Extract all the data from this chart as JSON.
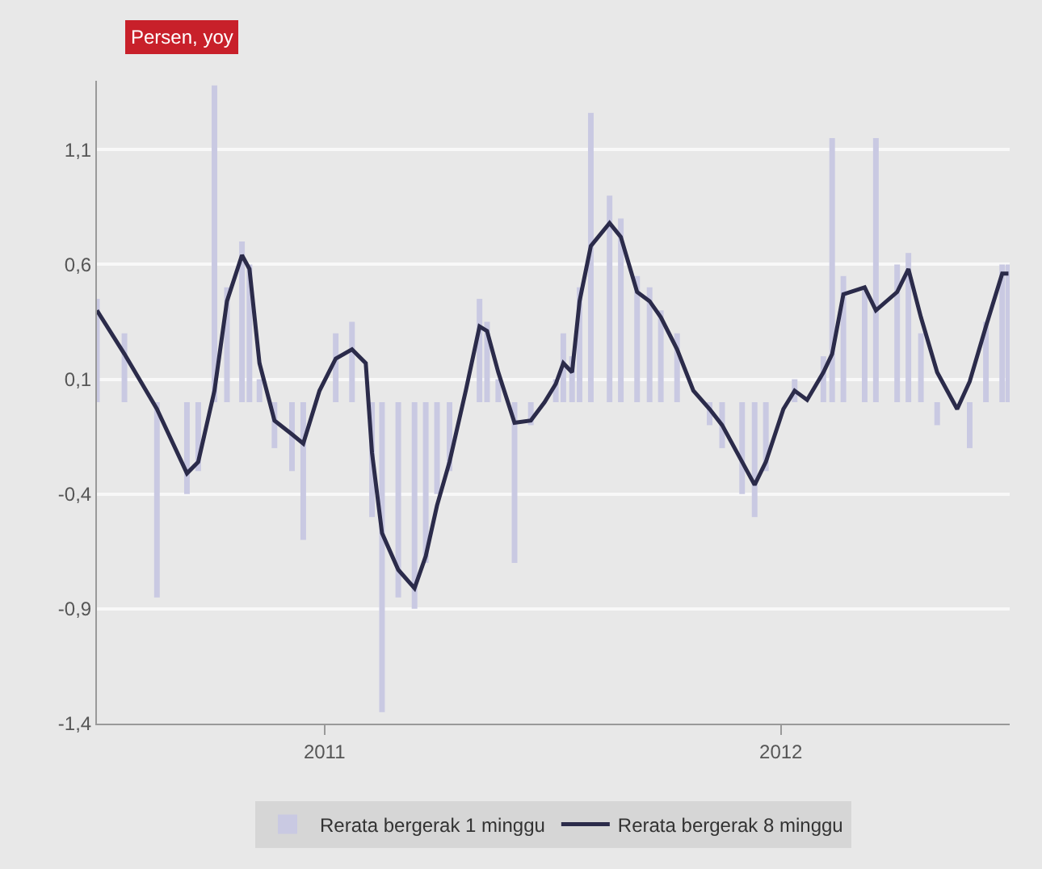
{
  "chart_data": {
    "type": "bar",
    "annotations": [
      "Persen, yoy"
    ],
    "x": [
      "2011-01-01",
      "2011-01-23",
      "2011-02-18",
      "2011-03-14",
      "2011-03-23",
      "2011-04-05",
      "2011-04-15",
      "2011-04-27",
      "2011-05-03",
      "2011-05-11",
      "2011-05-23",
      "2011-06-06",
      "2011-06-15",
      "2011-06-28",
      "2011-07-11",
      "2011-07-24",
      "2011-08-04",
      "2011-08-09",
      "2011-08-17",
      "2011-08-30",
      "2011-09-12",
      "2011-09-21",
      "2011-09-30",
      "2011-10-10",
      "2011-10-23",
      "2011-11-03",
      "2011-11-09",
      "2011-11-18",
      "2011-12-01",
      "2011-12-14",
      "2011-12-25",
      "2012-01-03",
      "2012-01-09",
      "2012-01-16",
      "2012-01-22",
      "2012-01-31",
      "2012-02-15",
      "2012-02-24",
      "2012-03-08",
      "2012-03-18",
      "2012-03-27",
      "2012-04-09",
      "2012-04-22",
      "2012-05-05",
      "2012-05-15",
      "2012-05-31",
      "2012-06-10",
      "2012-06-19",
      "2012-07-03",
      "2012-07-12",
      "2012-07-22",
      "2012-08-04",
      "2012-08-11",
      "2012-08-20",
      "2012-09-06",
      "2012-09-15",
      "2012-10-02",
      "2012-10-11",
      "2012-10-21",
      "2012-11-03",
      "2012-11-19",
      "2012-11-29",
      "2012-12-12",
      "2012-12-25",
      "2012-12-30"
    ],
    "series": [
      {
        "name": "Rerata bergerak 1 minggu",
        "color": "#c9c9e2",
        "values": [
          0.45,
          0.3,
          -0.85,
          -0.4,
          -0.3,
          1.38,
          0.5,
          0.7,
          0.6,
          0.1,
          -0.2,
          -0.3,
          -0.6,
          0.0,
          0.3,
          0.35,
          null,
          -0.5,
          -1.35,
          -0.85,
          -0.9,
          -0.7,
          -0.4,
          -0.3,
          null,
          0.45,
          0.35,
          0.1,
          -0.7,
          -0.1,
          0.0,
          0.1,
          0.3,
          0.2,
          0.5,
          1.26,
          0.9,
          0.8,
          0.55,
          0.5,
          0.4,
          0.3,
          0.0,
          -0.1,
          -0.2,
          -0.4,
          -0.5,
          -0.3,
          0.0,
          0.1,
          null,
          0.2,
          1.15,
          0.55,
          0.5,
          1.15,
          0.6,
          0.65,
          0.3,
          -0.1,
          0.0,
          -0.2,
          0.35,
          0.6,
          0.6
        ]
      },
      {
        "name": "Rerata bergerak 8 minggu",
        "type": "line",
        "color": "#2b2b4a",
        "values": [
          0.4,
          0.21,
          -0.03,
          -0.31,
          -0.26,
          0.05,
          0.44,
          0.64,
          0.58,
          0.17,
          -0.08,
          -0.14,
          -0.18,
          0.05,
          0.19,
          0.23,
          0.17,
          -0.22,
          -0.57,
          -0.73,
          -0.81,
          -0.67,
          -0.45,
          -0.26,
          0.05,
          0.33,
          0.31,
          0.13,
          -0.09,
          -0.08,
          0.0,
          0.08,
          0.17,
          0.13,
          0.44,
          0.68,
          0.78,
          0.72,
          0.48,
          0.44,
          0.37,
          0.23,
          0.05,
          -0.03,
          -0.1,
          -0.26,
          -0.36,
          -0.26,
          -0.03,
          0.05,
          0.01,
          0.13,
          0.21,
          0.47,
          0.5,
          0.4,
          0.48,
          0.58,
          0.37,
          0.13,
          -0.03,
          0.09,
          0.33,
          0.56,
          0.56
        ]
      }
    ],
    "xlim": [
      "2011-01-01",
      "2012-12-31"
    ],
    "xticks": [
      {
        "value": "2011-07-02",
        "label": "2011"
      },
      {
        "value": "2012-07-01",
        "label": "2012"
      }
    ],
    "ylim": [
      -1.4,
      1.4
    ],
    "yticks": [
      {
        "value": -1.4,
        "label": "-1,4"
      },
      {
        "value": -0.9,
        "label": "-0,9"
      },
      {
        "value": -0.4,
        "label": "-0,4"
      },
      {
        "value": 0.1,
        "label": "0,1"
      },
      {
        "value": 0.6,
        "label": "0,6"
      },
      {
        "value": 1.1,
        "label": "1,1"
      }
    ],
    "grid": "y",
    "legend": "bottom"
  }
}
